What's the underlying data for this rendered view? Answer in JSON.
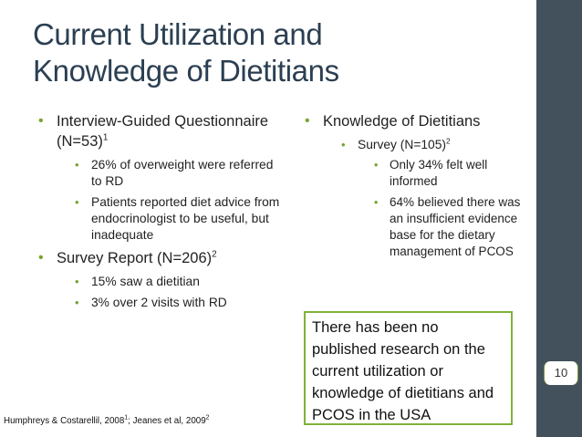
{
  "title": {
    "line1": "Current Utilization and",
    "line2": "Knowledge of Dietitians"
  },
  "left": {
    "item1": {
      "text": "Interview-Guided Questionnaire (N=53)",
      "sup": "1",
      "subitems": [
        "26% of overweight were referred to RD",
        "Patients reported diet advice from endocrinologist to be useful, but inadequate"
      ]
    },
    "item2": {
      "text": "Survey Report (N=206)",
      "sup": "2",
      "subitems": [
        "15% saw a dietitian",
        "3% over 2 visits with RD"
      ]
    }
  },
  "right": {
    "item1": {
      "text": "Knowledge of Dietitians",
      "sub": {
        "text": "Survey (N=105)",
        "sup": "2",
        "subitems": [
          "Only 34% felt well informed",
          "64% believed there was an insufficient evidence base for the dietary management of PCOS"
        ]
      }
    }
  },
  "callout": {
    "text": "There has been no published research on the current utilization or knowledge of dietitians and PCOS in the USA"
  },
  "footnote": {
    "part1": "Humphreys & Costarellil, 2008",
    "sup1": "1",
    "part2": "; Jeanes et al, 2009",
    "sup2": "2"
  },
  "page_number": "10",
  "colors": {
    "accent_green": "#78a22f",
    "title": "#2b3f52",
    "sidebar": "#43515d"
  },
  "icons": {
    "bullet": "bullet-dot-icon"
  }
}
